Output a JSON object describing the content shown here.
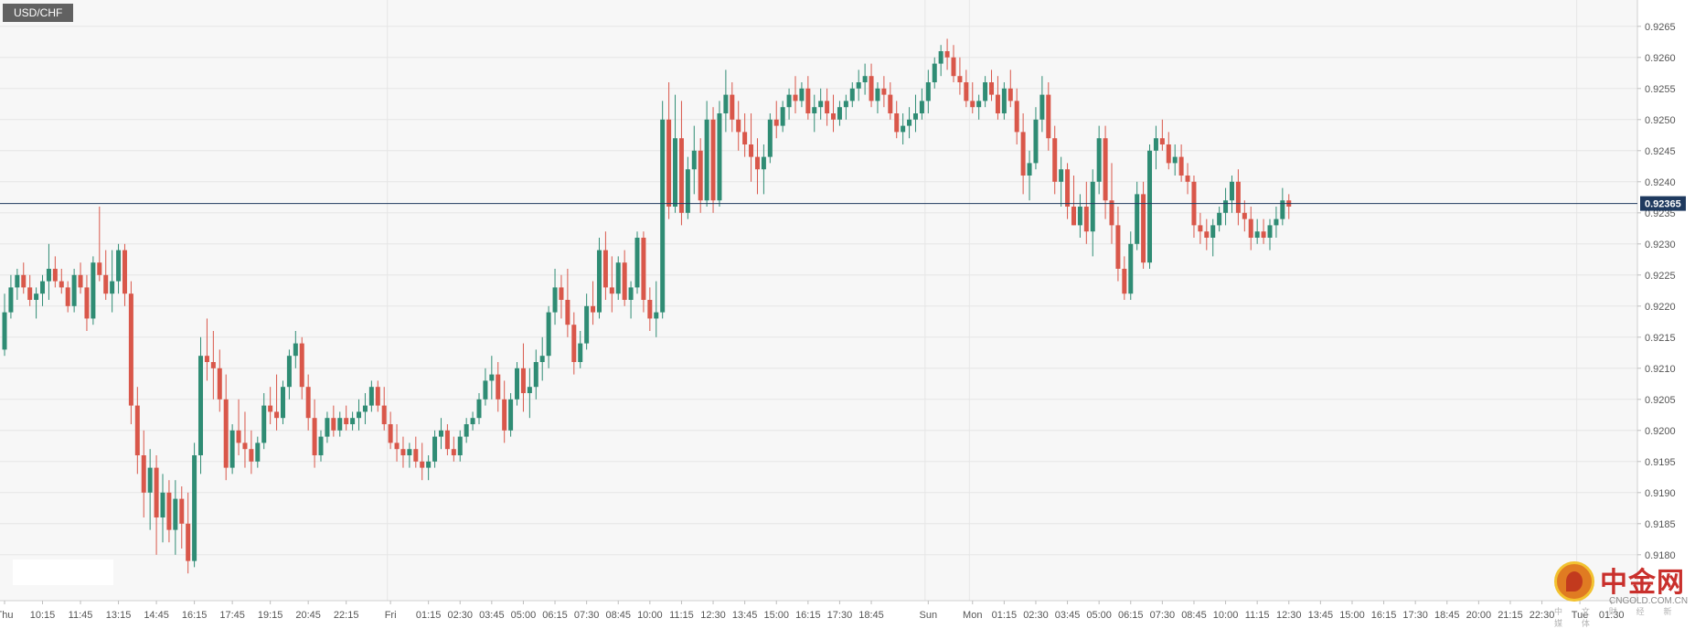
{
  "symbol": "USD/CHF",
  "current_price_label": "0.92365",
  "watermark": {
    "name": "中金网",
    "url": "CNGOLD.COM.CN",
    "subtitle": "中 文 财 经 新 媒 体"
  },
  "colors": {
    "up": "#2f8c74",
    "down": "#d9574a",
    "price_line": "#1f3a5f",
    "grid": "#e6e6e6",
    "background": "#f7f7f7"
  },
  "chart_data": {
    "type": "candlestick",
    "ylim": [
      0.9173,
      0.927
    ],
    "grid": true,
    "current_price": 0.92365,
    "y_ticks": [
      "0.9180",
      "0.9185",
      "0.9190",
      "0.9195",
      "0.9200",
      "0.9205",
      "0.9210",
      "0.9215",
      "0.9220",
      "0.9225",
      "0.9230",
      "0.9235",
      "0.9240",
      "0.9245",
      "0.9250",
      "0.9255",
      "0.9260",
      "0.9265"
    ],
    "x_ticks": [
      {
        "label": "Thu",
        "i": 0
      },
      {
        "label": "10:15",
        "i": 6
      },
      {
        "label": "11:45",
        "i": 12
      },
      {
        "label": "13:15",
        "i": 18
      },
      {
        "label": "14:45",
        "i": 24
      },
      {
        "label": "16:15",
        "i": 30
      },
      {
        "label": "17:45",
        "i": 36
      },
      {
        "label": "19:15",
        "i": 42
      },
      {
        "label": "20:45",
        "i": 48
      },
      {
        "label": "22:15",
        "i": 54
      },
      {
        "label": "Fri",
        "i": 61
      },
      {
        "label": "01:15",
        "i": 67
      },
      {
        "label": "02:30",
        "i": 72
      },
      {
        "label": "03:45",
        "i": 77
      },
      {
        "label": "05:00",
        "i": 82
      },
      {
        "label": "06:15",
        "i": 87
      },
      {
        "label": "07:30",
        "i": 92
      },
      {
        "label": "08:45",
        "i": 97
      },
      {
        "label": "10:00",
        "i": 102
      },
      {
        "label": "11:15",
        "i": 107
      },
      {
        "label": "12:30",
        "i": 112
      },
      {
        "label": "13:45",
        "i": 117
      },
      {
        "label": "15:00",
        "i": 122
      },
      {
        "label": "16:15",
        "i": 127
      },
      {
        "label": "17:30",
        "i": 132
      },
      {
        "label": "18:45",
        "i": 137
      },
      {
        "label": "Sun",
        "i": 146
      },
      {
        "label": "Mon",
        "i": 153
      },
      {
        "label": "01:15",
        "i": 158
      },
      {
        "label": "02:30",
        "i": 163
      },
      {
        "label": "03:45",
        "i": 168
      },
      {
        "label": "05:00",
        "i": 173
      },
      {
        "label": "06:15",
        "i": 178
      },
      {
        "label": "07:30",
        "i": 183
      },
      {
        "label": "08:45",
        "i": 188
      },
      {
        "label": "10:00",
        "i": 193
      },
      {
        "label": "11:15",
        "i": 198
      },
      {
        "label": "12:30",
        "i": 203
      },
      {
        "label": "13:45",
        "i": 208
      },
      {
        "label": "15:00",
        "i": 213
      },
      {
        "label": "16:15",
        "i": 218
      },
      {
        "label": "17:30",
        "i": 223
      },
      {
        "label": "18:45",
        "i": 228
      },
      {
        "label": "20:00",
        "i": 233
      },
      {
        "label": "21:15",
        "i": 238
      },
      {
        "label": "22:30",
        "i": 243
      },
      {
        "label": "Tue",
        "i": 249
      },
      {
        "label": "01:30",
        "i": 254
      }
    ],
    "session_separators": [
      61,
      146,
      153,
      249
    ],
    "candles": [
      [
        0.9213,
        0.9222,
        0.9212,
        0.9219
      ],
      [
        0.9219,
        0.9225,
        0.9218,
        0.9223
      ],
      [
        0.9223,
        0.9226,
        0.9221,
        0.9225
      ],
      [
        0.9225,
        0.9227,
        0.9222,
        0.9223
      ],
      [
        0.9223,
        0.9225,
        0.922,
        0.9221
      ],
      [
        0.9221,
        0.9223,
        0.9218,
        0.9222
      ],
      [
        0.9222,
        0.9225,
        0.922,
        0.9224
      ],
      [
        0.9224,
        0.923,
        0.9221,
        0.9226
      ],
      [
        0.9226,
        0.9228,
        0.9223,
        0.9224
      ],
      [
        0.9224,
        0.9226,
        0.9222,
        0.9223
      ],
      [
        0.9223,
        0.9224,
        0.9219,
        0.922
      ],
      [
        0.922,
        0.9226,
        0.9219,
        0.9225
      ],
      [
        0.9225,
        0.9227,
        0.9222,
        0.9223
      ],
      [
        0.9223,
        0.9225,
        0.9216,
        0.9218
      ],
      [
        0.9218,
        0.9228,
        0.9217,
        0.9227
      ],
      [
        0.9227,
        0.9236,
        0.9224,
        0.9225
      ],
      [
        0.9225,
        0.9229,
        0.9221,
        0.9222
      ],
      [
        0.9222,
        0.9229,
        0.9219,
        0.9224
      ],
      [
        0.9224,
        0.923,
        0.9222,
        0.9229
      ],
      [
        0.9229,
        0.923,
        0.922,
        0.9222
      ],
      [
        0.9222,
        0.9224,
        0.9201,
        0.9204
      ],
      [
        0.9204,
        0.9207,
        0.9193,
        0.9196
      ],
      [
        0.9196,
        0.92,
        0.9186,
        0.919
      ],
      [
        0.919,
        0.9197,
        0.9184,
        0.9194
      ],
      [
        0.9194,
        0.9196,
        0.918,
        0.9186
      ],
      [
        0.9186,
        0.9193,
        0.9182,
        0.919
      ],
      [
        0.919,
        0.9192,
        0.9182,
        0.9184
      ],
      [
        0.9184,
        0.9192,
        0.918,
        0.9189
      ],
      [
        0.9189,
        0.9191,
        0.9181,
        0.9185
      ],
      [
        0.9185,
        0.919,
        0.9177,
        0.9179
      ],
      [
        0.9179,
        0.9198,
        0.9178,
        0.9196
      ],
      [
        0.9196,
        0.9215,
        0.9193,
        0.9212
      ],
      [
        0.9212,
        0.9218,
        0.9208,
        0.9211
      ],
      [
        0.9211,
        0.9216,
        0.9205,
        0.921
      ],
      [
        0.921,
        0.9213,
        0.9203,
        0.9205
      ],
      [
        0.9205,
        0.9209,
        0.9192,
        0.9194
      ],
      [
        0.9194,
        0.9201,
        0.9193,
        0.92
      ],
      [
        0.92,
        0.9205,
        0.9196,
        0.9198
      ],
      [
        0.9198,
        0.9203,
        0.9194,
        0.9197
      ],
      [
        0.9197,
        0.92,
        0.9193,
        0.9195
      ],
      [
        0.9195,
        0.9199,
        0.9194,
        0.9198
      ],
      [
        0.9198,
        0.9206,
        0.9197,
        0.9204
      ],
      [
        0.9204,
        0.9207,
        0.9201,
        0.9203
      ],
      [
        0.9203,
        0.9209,
        0.92,
        0.9202
      ],
      [
        0.9202,
        0.9208,
        0.9201,
        0.9207
      ],
      [
        0.9207,
        0.9213,
        0.9205,
        0.9212
      ],
      [
        0.9212,
        0.9216,
        0.921,
        0.9214
      ],
      [
        0.9214,
        0.9215,
        0.9205,
        0.9207
      ],
      [
        0.9207,
        0.9209,
        0.92,
        0.9202
      ],
      [
        0.9202,
        0.9205,
        0.9194,
        0.9196
      ],
      [
        0.9196,
        0.92,
        0.9195,
        0.9199
      ],
      [
        0.9199,
        0.9203,
        0.9198,
        0.9202
      ],
      [
        0.9202,
        0.9204,
        0.9199,
        0.92
      ],
      [
        0.92,
        0.9203,
        0.9199,
        0.9202
      ],
      [
        0.9202,
        0.9204,
        0.92,
        0.9201
      ],
      [
        0.9201,
        0.9203,
        0.92,
        0.9202
      ],
      [
        0.9202,
        0.9205,
        0.92,
        0.9203
      ],
      [
        0.9203,
        0.9206,
        0.9201,
        0.9204
      ],
      [
        0.9204,
        0.9208,
        0.9203,
        0.9207
      ],
      [
        0.9207,
        0.9208,
        0.9203,
        0.9204
      ],
      [
        0.9204,
        0.9207,
        0.92,
        0.9201
      ],
      [
        0.9201,
        0.9203,
        0.9197,
        0.9198
      ],
      [
        0.9198,
        0.9201,
        0.9195,
        0.9197
      ],
      [
        0.9197,
        0.9199,
        0.9194,
        0.9196
      ],
      [
        0.9196,
        0.9198,
        0.9194,
        0.9197
      ],
      [
        0.9197,
        0.9199,
        0.9194,
        0.9195
      ],
      [
        0.9195,
        0.9198,
        0.9192,
        0.9194
      ],
      [
        0.9194,
        0.9196,
        0.9192,
        0.9195
      ],
      [
        0.9195,
        0.92,
        0.9194,
        0.9199
      ],
      [
        0.9199,
        0.9202,
        0.9197,
        0.92
      ],
      [
        0.92,
        0.9201,
        0.9196,
        0.9197
      ],
      [
        0.9197,
        0.9199,
        0.9195,
        0.9196
      ],
      [
        0.9196,
        0.92,
        0.9195,
        0.9199
      ],
      [
        0.9199,
        0.9202,
        0.9198,
        0.9201
      ],
      [
        0.9201,
        0.9203,
        0.92,
        0.9202
      ],
      [
        0.9202,
        0.9206,
        0.9201,
        0.9205
      ],
      [
        0.9205,
        0.921,
        0.9204,
        0.9208
      ],
      [
        0.9208,
        0.9212,
        0.9205,
        0.9209
      ],
      [
        0.9209,
        0.9211,
        0.9203,
        0.9205
      ],
      [
        0.9205,
        0.9208,
        0.9198,
        0.92
      ],
      [
        0.92,
        0.9206,
        0.9199,
        0.9205
      ],
      [
        0.9205,
        0.9211,
        0.9204,
        0.921
      ],
      [
        0.921,
        0.9214,
        0.9203,
        0.9206
      ],
      [
        0.9206,
        0.921,
        0.9202,
        0.9207
      ],
      [
        0.9207,
        0.9213,
        0.9205,
        0.9211
      ],
      [
        0.9211,
        0.9215,
        0.9208,
        0.9212
      ],
      [
        0.9212,
        0.922,
        0.921,
        0.9219
      ],
      [
        0.9219,
        0.9226,
        0.9217,
        0.9223
      ],
      [
        0.9223,
        0.9225,
        0.9218,
        0.9221
      ],
      [
        0.9221,
        0.9226,
        0.9215,
        0.9217
      ],
      [
        0.9217,
        0.9219,
        0.9209,
        0.9211
      ],
      [
        0.9211,
        0.9216,
        0.921,
        0.9214
      ],
      [
        0.9214,
        0.9222,
        0.9213,
        0.922
      ],
      [
        0.922,
        0.9224,
        0.9217,
        0.9219
      ],
      [
        0.9219,
        0.9231,
        0.9218,
        0.9229
      ],
      [
        0.9229,
        0.9232,
        0.9221,
        0.9223
      ],
      [
        0.9223,
        0.9228,
        0.9219,
        0.9222
      ],
      [
        0.9222,
        0.9228,
        0.9221,
        0.9227
      ],
      [
        0.9227,
        0.9229,
        0.922,
        0.9221
      ],
      [
        0.9221,
        0.9224,
        0.9218,
        0.9223
      ],
      [
        0.9223,
        0.9232,
        0.9222,
        0.9231
      ],
      [
        0.9231,
        0.9232,
        0.9219,
        0.9221
      ],
      [
        0.9221,
        0.9223,
        0.9216,
        0.9218
      ],
      [
        0.9218,
        0.9224,
        0.9215,
        0.9219
      ],
      [
        0.9219,
        0.9253,
        0.9218,
        0.925
      ],
      [
        0.925,
        0.9256,
        0.9234,
        0.9236
      ],
      [
        0.9236,
        0.9254,
        0.9235,
        0.9247
      ],
      [
        0.9247,
        0.9253,
        0.9233,
        0.9235
      ],
      [
        0.9235,
        0.9244,
        0.9234,
        0.9242
      ],
      [
        0.9242,
        0.9249,
        0.9238,
        0.9245
      ],
      [
        0.9245,
        0.9247,
        0.9235,
        0.9237
      ],
      [
        0.9237,
        0.9253,
        0.9236,
        0.925
      ],
      [
        0.925,
        0.9252,
        0.9235,
        0.9237
      ],
      [
        0.9237,
        0.9253,
        0.9236,
        0.9251
      ],
      [
        0.9251,
        0.9258,
        0.9248,
        0.9254
      ],
      [
        0.9254,
        0.9256,
        0.9248,
        0.925
      ],
      [
        0.925,
        0.9253,
        0.9245,
        0.9248
      ],
      [
        0.9248,
        0.9251,
        0.9244,
        0.9246
      ],
      [
        0.9246,
        0.9251,
        0.924,
        0.9244
      ],
      [
        0.9244,
        0.9247,
        0.9238,
        0.9242
      ],
      [
        0.9242,
        0.9246,
        0.9238,
        0.9244
      ],
      [
        0.9244,
        0.9251,
        0.9243,
        0.925
      ],
      [
        0.925,
        0.9253,
        0.9247,
        0.9249
      ],
      [
        0.9249,
        0.9253,
        0.9248,
        0.9252
      ],
      [
        0.9252,
        0.9255,
        0.925,
        0.9254
      ],
      [
        0.9254,
        0.9257,
        0.9251,
        0.9253
      ],
      [
        0.9253,
        0.9256,
        0.9252,
        0.9255
      ],
      [
        0.9255,
        0.9257,
        0.925,
        0.9251
      ],
      [
        0.9251,
        0.9254,
        0.9248,
        0.9252
      ],
      [
        0.9252,
        0.9255,
        0.925,
        0.9253
      ],
      [
        0.9253,
        0.9255,
        0.9249,
        0.9251
      ],
      [
        0.9251,
        0.9254,
        0.9248,
        0.925
      ],
      [
        0.925,
        0.9253,
        0.9249,
        0.9252
      ],
      [
        0.9252,
        0.9254,
        0.925,
        0.9253
      ],
      [
        0.9253,
        0.9256,
        0.9252,
        0.9255
      ],
      [
        0.9255,
        0.9258,
        0.9253,
        0.9256
      ],
      [
        0.9256,
        0.9259,
        0.9254,
        0.9257
      ],
      [
        0.9257,
        0.9259,
        0.9252,
        0.9253
      ],
      [
        0.9253,
        0.9256,
        0.9251,
        0.9255
      ],
      [
        0.9255,
        0.9257,
        0.9252,
        0.9254
      ],
      [
        0.9254,
        0.9256,
        0.925,
        0.9251
      ],
      [
        0.9251,
        0.9253,
        0.9247,
        0.9248
      ],
      [
        0.9248,
        0.9251,
        0.9246,
        0.9249
      ],
      [
        0.9249,
        0.9252,
        0.9247,
        0.925
      ],
      [
        0.925,
        0.9254,
        0.9248,
        0.9251
      ],
      [
        0.9251,
        0.9255,
        0.925,
        0.9253
      ],
      [
        0.9253,
        0.9258,
        0.9251,
        0.9256
      ],
      [
        0.9256,
        0.926,
        0.9255,
        0.9259
      ],
      [
        0.9259,
        0.9262,
        0.9257,
        0.9261
      ],
      [
        0.9261,
        0.9263,
        0.9258,
        0.926
      ],
      [
        0.926,
        0.9262,
        0.9256,
        0.9257
      ],
      [
        0.9257,
        0.926,
        0.9254,
        0.9256
      ],
      [
        0.9256,
        0.9258,
        0.9252,
        0.9253
      ],
      [
        0.9253,
        0.9256,
        0.9251,
        0.9252
      ],
      [
        0.9252,
        0.9254,
        0.925,
        0.9253
      ],
      [
        0.9253,
        0.9257,
        0.9252,
        0.9256
      ],
      [
        0.9256,
        0.9258,
        0.9253,
        0.9254
      ],
      [
        0.9254,
        0.9257,
        0.925,
        0.9251
      ],
      [
        0.9251,
        0.9256,
        0.925,
        0.9255
      ],
      [
        0.9255,
        0.9258,
        0.9252,
        0.9253
      ],
      [
        0.9253,
        0.9255,
        0.9246,
        0.9248
      ],
      [
        0.9248,
        0.9251,
        0.9238,
        0.9241
      ],
      [
        0.9241,
        0.9245,
        0.9237,
        0.9243
      ],
      [
        0.9243,
        0.9252,
        0.9242,
        0.925
      ],
      [
        0.925,
        0.9257,
        0.9248,
        0.9254
      ],
      [
        0.9254,
        0.9256,
        0.9245,
        0.9247
      ],
      [
        0.9247,
        0.9249,
        0.9238,
        0.924
      ],
      [
        0.924,
        0.9244,
        0.9236,
        0.9242
      ],
      [
        0.9242,
        0.9243,
        0.9234,
        0.9236
      ],
      [
        0.9236,
        0.9241,
        0.9233,
        0.9233
      ],
      [
        0.9233,
        0.9238,
        0.9231,
        0.9236
      ],
      [
        0.9236,
        0.924,
        0.923,
        0.9232
      ],
      [
        0.9232,
        0.9242,
        0.9228,
        0.924
      ],
      [
        0.924,
        0.9249,
        0.9238,
        0.9247
      ],
      [
        0.9247,
        0.9249,
        0.9234,
        0.9237
      ],
      [
        0.9237,
        0.9243,
        0.923,
        0.9233
      ],
      [
        0.9233,
        0.9236,
        0.9224,
        0.9226
      ],
      [
        0.9226,
        0.9228,
        0.9221,
        0.9222
      ],
      [
        0.9222,
        0.9232,
        0.9221,
        0.923
      ],
      [
        0.923,
        0.924,
        0.9229,
        0.9238
      ],
      [
        0.9238,
        0.924,
        0.9226,
        0.9227
      ],
      [
        0.9227,
        0.9246,
        0.9226,
        0.9245
      ],
      [
        0.9245,
        0.9249,
        0.9242,
        0.9247
      ],
      [
        0.9247,
        0.925,
        0.9245,
        0.9246
      ],
      [
        0.9246,
        0.9248,
        0.9242,
        0.9243
      ],
      [
        0.9243,
        0.9246,
        0.9241,
        0.9244
      ],
      [
        0.9244,
        0.9246,
        0.924,
        0.9241
      ],
      [
        0.9241,
        0.9243,
        0.9238,
        0.924
      ],
      [
        0.924,
        0.9241,
        0.9231,
        0.9233
      ],
      [
        0.9233,
        0.9235,
        0.923,
        0.9232
      ],
      [
        0.9232,
        0.9234,
        0.9229,
        0.9231
      ],
      [
        0.9231,
        0.9234,
        0.9228,
        0.9233
      ],
      [
        0.9233,
        0.9236,
        0.9232,
        0.9235
      ],
      [
        0.9235,
        0.9239,
        0.9233,
        0.9237
      ],
      [
        0.9237,
        0.9241,
        0.9235,
        0.924
      ],
      [
        0.924,
        0.9242,
        0.9233,
        0.9235
      ],
      [
        0.9235,
        0.9237,
        0.9232,
        0.9234
      ],
      [
        0.9234,
        0.9236,
        0.9229,
        0.9231
      ],
      [
        0.9231,
        0.9234,
        0.923,
        0.9232
      ],
      [
        0.9232,
        0.9234,
        0.923,
        0.9231
      ],
      [
        0.9231,
        0.9234,
        0.9229,
        0.9233
      ],
      [
        0.9233,
        0.9236,
        0.9231,
        0.9234
      ],
      [
        0.9234,
        0.9239,
        0.9233,
        0.9237
      ],
      [
        0.9237,
        0.9238,
        0.9234,
        0.9236
      ]
    ]
  }
}
